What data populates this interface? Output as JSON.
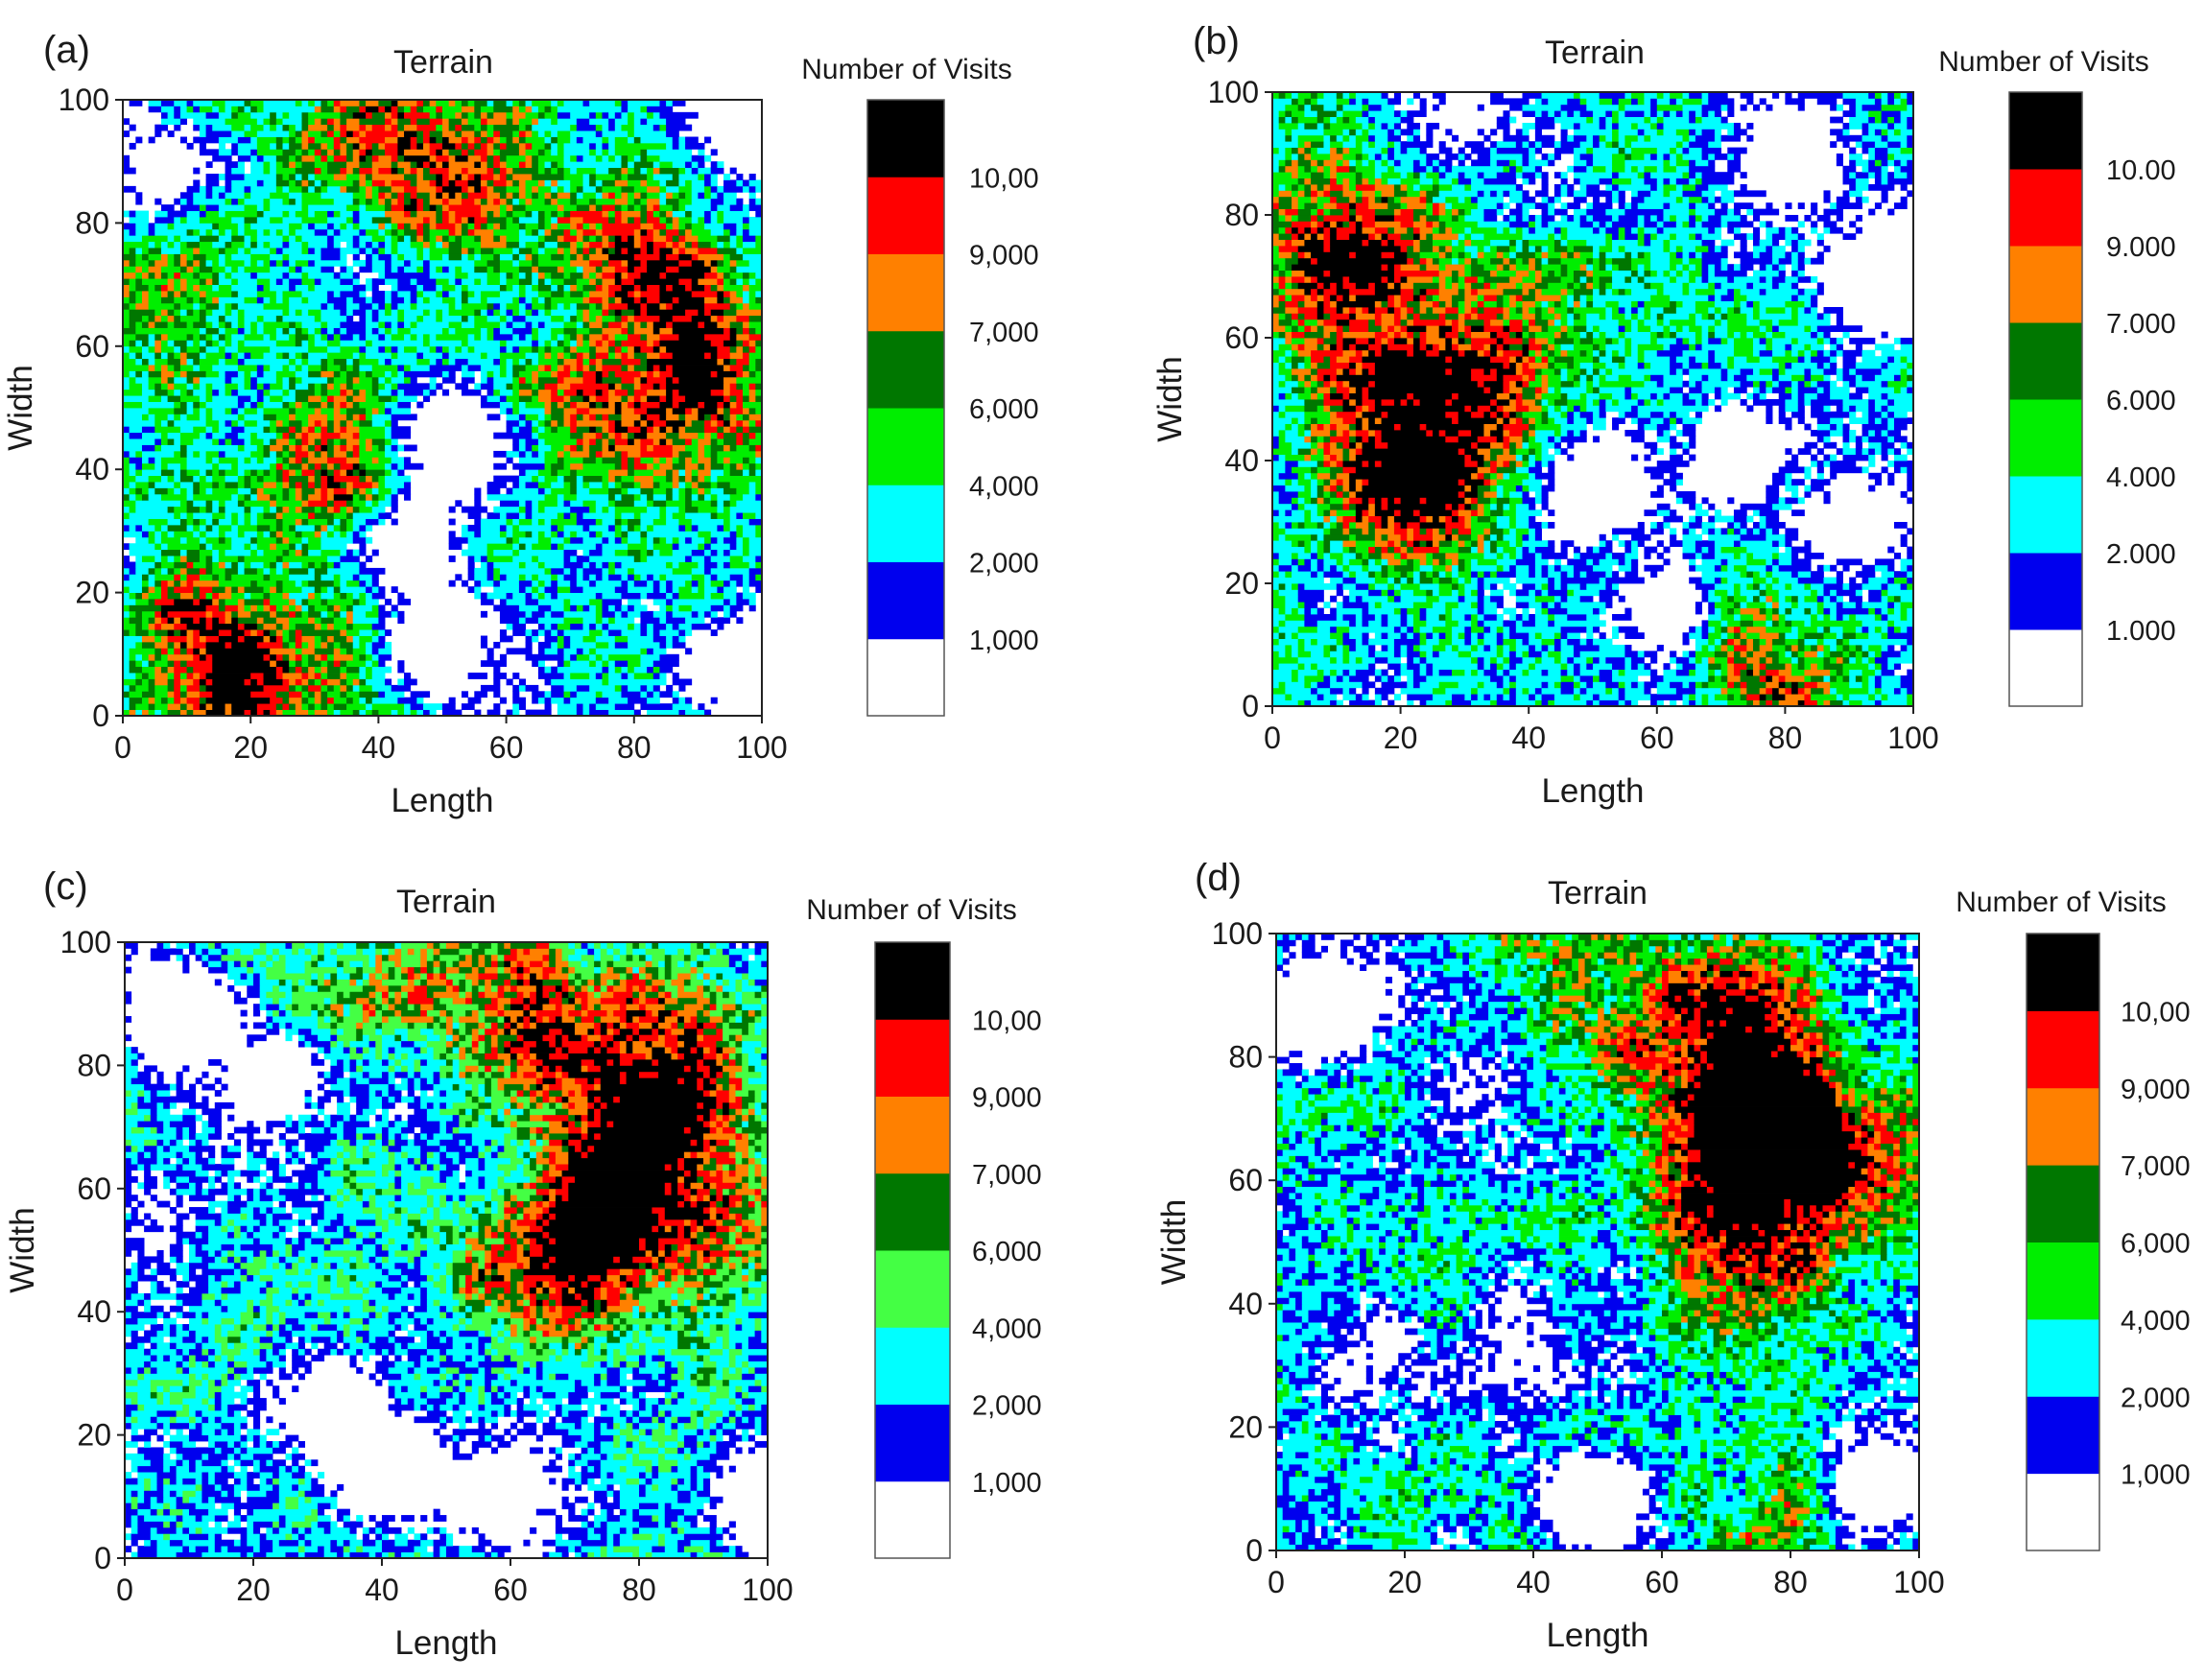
{
  "figure": {
    "panels": [
      {
        "label": "(a)",
        "title": "Terrain",
        "legend_title": "Number of Visits",
        "legend_labels": [
          "10,00",
          "9,000",
          "7,000",
          "6,000",
          "4,000",
          "2,000",
          "1,000"
        ]
      },
      {
        "label": "(b)",
        "title": "Terrain",
        "legend_title": "Number of Visits",
        "legend_labels": [
          "10.00",
          "9.000",
          "7.000",
          "6.000",
          "4.000",
          "2.000",
          "1.000"
        ]
      },
      {
        "label": "(c)",
        "title": "Terrain",
        "legend_title": "Number of Visits",
        "legend_labels": [
          "10,00",
          "9,000",
          "7,000",
          "6,000",
          "4,000",
          "2,000",
          "1,000"
        ]
      },
      {
        "label": "(d)",
        "title": "Terrain",
        "legend_title": "Number of Visits",
        "legend_labels": [
          "10,00",
          "9,000",
          "7,000",
          "6,000",
          "4,000",
          "2,000",
          "1,000"
        ]
      }
    ]
  },
  "chart_data": [
    {
      "type": "heatmap",
      "panel": "(a)",
      "title": "Terrain",
      "xlabel": "Length",
      "ylabel": "Width",
      "xlim": [
        0,
        100
      ],
      "ylim": [
        0,
        100
      ],
      "xticks": [
        "0",
        "20",
        "40",
        "60",
        "80",
        "100"
      ],
      "yticks": [
        "0",
        "20",
        "40",
        "60",
        "80",
        "100"
      ],
      "colorbar_title": "Number of Visits",
      "colorbar_bins": [
        "1,000",
        "2,000",
        "4,000",
        "6,000",
        "7,000",
        "9,000",
        "10,00"
      ],
      "colors": [
        "#ffffff",
        "#0000ee",
        "#00ffff",
        "#00ee00",
        "#007700",
        "#ff8000",
        "#ff0000",
        "#000000"
      ],
      "grid_cells": 100,
      "hotspots": [
        {
          "x": 80,
          "y": 72,
          "weight": 1.0
        },
        {
          "x": 92,
          "y": 55,
          "weight": 0.9
        },
        {
          "x": 35,
          "y": 42,
          "weight": 0.8
        },
        {
          "x": 12,
          "y": 10,
          "weight": 0.9
        },
        {
          "x": 25,
          "y": 8,
          "weight": 0.7
        },
        {
          "x": 40,
          "y": 98,
          "weight": 0.8
        },
        {
          "x": 10,
          "y": 65,
          "weight": 0.7
        },
        {
          "x": 55,
          "y": 85,
          "weight": 0.7
        },
        {
          "x": 72,
          "y": 45,
          "weight": 0.6
        }
      ],
      "empty_regions": [
        {
          "x": 52,
          "y": 45,
          "weight": 1.0
        },
        {
          "x": 50,
          "y": 12,
          "weight": 1.0
        },
        {
          "x": 97,
          "y": 8,
          "weight": 0.9
        },
        {
          "x": 98,
          "y": 95,
          "weight": 1.0
        },
        {
          "x": 45,
          "y": 27,
          "weight": 0.8
        },
        {
          "x": 5,
          "y": 88,
          "weight": 0.7
        }
      ]
    },
    {
      "type": "heatmap",
      "panel": "(b)",
      "title": "Terrain",
      "xlabel": "Length",
      "ylabel": "Width",
      "xlim": [
        0,
        100
      ],
      "ylim": [
        0,
        100
      ],
      "xticks": [
        "0",
        "20",
        "40",
        "60",
        "80",
        "100"
      ],
      "yticks": [
        "0",
        "20",
        "40",
        "60",
        "80",
        "100"
      ],
      "colorbar_title": "Number of Visits",
      "colorbar_bins": [
        "1.000",
        "2.000",
        "4.000",
        "6.000",
        "7.000",
        "9.000",
        "10.00"
      ],
      "colors": [
        "#ffffff",
        "#0000ee",
        "#00ffff",
        "#00ee00",
        "#007700",
        "#ff8000",
        "#ff0000",
        "#000000"
      ],
      "grid_cells": 100,
      "hotspots": [
        {
          "x": 20,
          "y": 38,
          "weight": 1.0
        },
        {
          "x": 15,
          "y": 65,
          "weight": 0.9
        },
        {
          "x": 8,
          "y": 82,
          "weight": 0.8
        },
        {
          "x": 78,
          "y": 5,
          "weight": 0.8
        },
        {
          "x": 30,
          "y": 48,
          "weight": 0.7
        },
        {
          "x": 45,
          "y": 60,
          "weight": 0.5
        }
      ],
      "empty_regions": [
        {
          "x": 82,
          "y": 90,
          "weight": 1.0
        },
        {
          "x": 95,
          "y": 70,
          "weight": 1.0
        },
        {
          "x": 50,
          "y": 35,
          "weight": 1.0
        },
        {
          "x": 72,
          "y": 40,
          "weight": 0.8
        },
        {
          "x": 90,
          "y": 30,
          "weight": 0.8
        },
        {
          "x": 60,
          "y": 15,
          "weight": 0.8
        },
        {
          "x": 30,
          "y": 95,
          "weight": 0.6
        }
      ]
    },
    {
      "type": "heatmap",
      "panel": "(c)",
      "title": "Terrain",
      "xlabel": "Length",
      "ylabel": "Width",
      "xlim": [
        0,
        100
      ],
      "ylim": [
        0,
        100
      ],
      "xticks": [
        "0",
        "20",
        "40",
        "60",
        "80",
        "100"
      ],
      "yticks": [
        "0",
        "20",
        "40",
        "60",
        "80",
        "100"
      ],
      "colorbar_title": "Number of Visits",
      "colorbar_bins": [
        "1,000",
        "2,000",
        "4,000",
        "6,000",
        "7,000",
        "9,000",
        "10,00"
      ],
      "colors": [
        "#ffffff",
        "#0000ee",
        "#00ffff",
        "#44ff44",
        "#007700",
        "#ff8000",
        "#ff0000",
        "#000000"
      ],
      "grid_cells": 100,
      "hotspots": [
        {
          "x": 68,
          "y": 48,
          "weight": 1.0
        },
        {
          "x": 75,
          "y": 55,
          "weight": 0.9
        },
        {
          "x": 68,
          "y": 88,
          "weight": 0.8
        },
        {
          "x": 82,
          "y": 70,
          "weight": 0.8
        },
        {
          "x": 45,
          "y": 98,
          "weight": 0.7
        },
        {
          "x": 98,
          "y": 55,
          "weight": 0.6
        },
        {
          "x": 88,
          "y": 80,
          "weight": 0.6
        }
      ],
      "empty_regions": [
        {
          "x": 8,
          "y": 88,
          "weight": 1.0
        },
        {
          "x": 22,
          "y": 78,
          "weight": 0.8
        },
        {
          "x": 60,
          "y": 10,
          "weight": 0.9
        },
        {
          "x": 98,
          "y": 10,
          "weight": 0.8
        },
        {
          "x": 30,
          "y": 25,
          "weight": 0.8
        },
        {
          "x": 40,
          "y": 15,
          "weight": 0.7
        },
        {
          "x": 3,
          "y": 55,
          "weight": 0.5
        }
      ]
    },
    {
      "type": "heatmap",
      "panel": "(d)",
      "title": "Terrain",
      "xlabel": "Length",
      "ylabel": "Width",
      "xlim": [
        0,
        100
      ],
      "ylim": [
        0,
        100
      ],
      "xticks": [
        "0",
        "20",
        "40",
        "60",
        "80",
        "100"
      ],
      "yticks": [
        "0",
        "20",
        "40",
        "60",
        "80",
        "100"
      ],
      "colorbar_title": "Number of Visits",
      "colorbar_bins": [
        "1,000",
        "2,000",
        "4,000",
        "6,000",
        "7,000",
        "9,000",
        "10,00"
      ],
      "colors": [
        "#ffffff",
        "#0000ee",
        "#00ffff",
        "#00ee00",
        "#007700",
        "#ff8000",
        "#ff0000",
        "#000000"
      ],
      "grid_cells": 100,
      "hotspots": [
        {
          "x": 80,
          "y": 70,
          "weight": 1.0
        },
        {
          "x": 68,
          "y": 88,
          "weight": 0.9
        },
        {
          "x": 72,
          "y": 50,
          "weight": 0.8
        },
        {
          "x": 92,
          "y": 58,
          "weight": 0.7
        },
        {
          "x": 70,
          "y": 68,
          "weight": 0.8
        },
        {
          "x": 45,
          "y": 92,
          "weight": 0.5
        },
        {
          "x": 78,
          "y": 5,
          "weight": 0.5
        }
      ],
      "empty_regions": [
        {
          "x": 8,
          "y": 88,
          "weight": 1.0
        },
        {
          "x": 30,
          "y": 75,
          "weight": 0.6
        },
        {
          "x": 50,
          "y": 8,
          "weight": 0.9
        },
        {
          "x": 93,
          "y": 10,
          "weight": 0.8
        },
        {
          "x": 38,
          "y": 35,
          "weight": 0.6
        },
        {
          "x": 15,
          "y": 30,
          "weight": 0.5
        }
      ]
    }
  ]
}
